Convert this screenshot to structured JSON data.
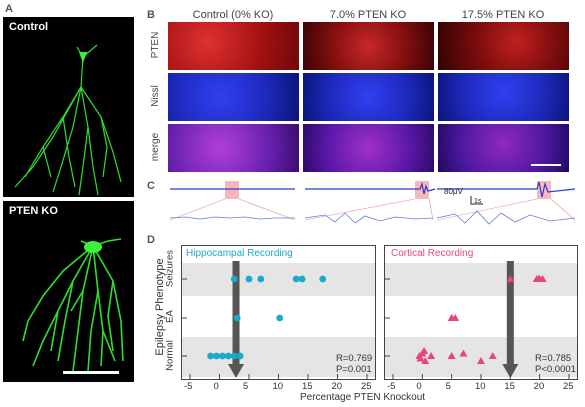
{
  "panels": {
    "a": {
      "letter": "A",
      "control_label": "Control",
      "ko_label": "PTEN KO"
    },
    "b": {
      "letter": "B",
      "columns": [
        "Control (0% KO)",
        "7.0% PTEN KO",
        "17.5% PTEN KO"
      ],
      "rows": [
        "PTEN",
        "Nissl",
        "merge"
      ],
      "colors": {
        "pten": "#d42020",
        "nissl": "#2030d8",
        "merge": "#7a28c8"
      }
    },
    "c": {
      "letter": "C",
      "scale_v": "80μV",
      "scale_t": "1s"
    },
    "d": {
      "letter": "D"
    }
  },
  "chart_data": [
    {
      "type": "scatter",
      "title": "Hippocampal Recording",
      "title_color": "#1ba8c9",
      "marker": "circle",
      "marker_color": "#1ba8c9",
      "xlabel": "Percentage PTEN Knockout",
      "ylabel": "Epilepsy Phenotype",
      "y_categories": [
        "Normal",
        "EA",
        "Seizures"
      ],
      "xlim": [
        -5,
        25
      ],
      "xticks": [
        "-5",
        "0",
        "5",
        "10",
        "15",
        "20",
        "25"
      ],
      "threshold_x": 2.8,
      "points": [
        {
          "x": -1.5,
          "y": "Normal"
        },
        {
          "x": -0.5,
          "y": "Normal"
        },
        {
          "x": 0.5,
          "y": "Normal"
        },
        {
          "x": 1.5,
          "y": "Normal"
        },
        {
          "x": 2.5,
          "y": "Normal"
        },
        {
          "x": 3.5,
          "y": "Normal"
        },
        {
          "x": 3.0,
          "y": "EA"
        },
        {
          "x": 10.2,
          "y": "EA"
        },
        {
          "x": 2.5,
          "y": "Seizures"
        },
        {
          "x": 5.0,
          "y": "Seizures"
        },
        {
          "x": 7.0,
          "y": "Seizures"
        },
        {
          "x": 13.0,
          "y": "Seizures"
        },
        {
          "x": 14.0,
          "y": "Seizures"
        },
        {
          "x": 17.5,
          "y": "Seizures"
        }
      ],
      "stats": [
        "R=0.769",
        "P=0.001"
      ]
    },
    {
      "type": "scatter",
      "title": "Cortical Recording",
      "title_color": "#e8457a",
      "marker": "triangle",
      "marker_color": "#e8457a",
      "xlabel": "Percentage PTEN Knockout",
      "y_categories": [
        "Normal",
        "EA",
        "Seizures"
      ],
      "xlim": [
        -5,
        25
      ],
      "xticks": [
        "-5",
        "0",
        "5",
        "10",
        "15",
        "20",
        "25"
      ],
      "threshold_x": 15,
      "points": [
        {
          "x": -0.5,
          "y": "Normal"
        },
        {
          "x": 0.0,
          "y": "Normal"
        },
        {
          "x": 0.5,
          "y": "Normal"
        },
        {
          "x": 1.5,
          "y": "Normal"
        },
        {
          "x": -0.3,
          "y": "Normal"
        },
        {
          "x": 0.3,
          "y": "Normal"
        },
        {
          "x": 5.0,
          "y": "Normal"
        },
        {
          "x": 7.0,
          "y": "Normal"
        },
        {
          "x": 10.0,
          "y": "Normal"
        },
        {
          "x": 12.0,
          "y": "Normal"
        },
        {
          "x": 5.0,
          "y": "EA"
        },
        {
          "x": 5.6,
          "y": "EA"
        },
        {
          "x": 15.0,
          "y": "Seizures"
        },
        {
          "x": 19.5,
          "y": "Seizures"
        },
        {
          "x": 20.0,
          "y": "Seizures"
        },
        {
          "x": 20.5,
          "y": "Seizures"
        },
        {
          "x": 19.8,
          "y": "Seizures"
        }
      ],
      "stats": [
        "R=0.785",
        "P<0.0001"
      ]
    }
  ]
}
